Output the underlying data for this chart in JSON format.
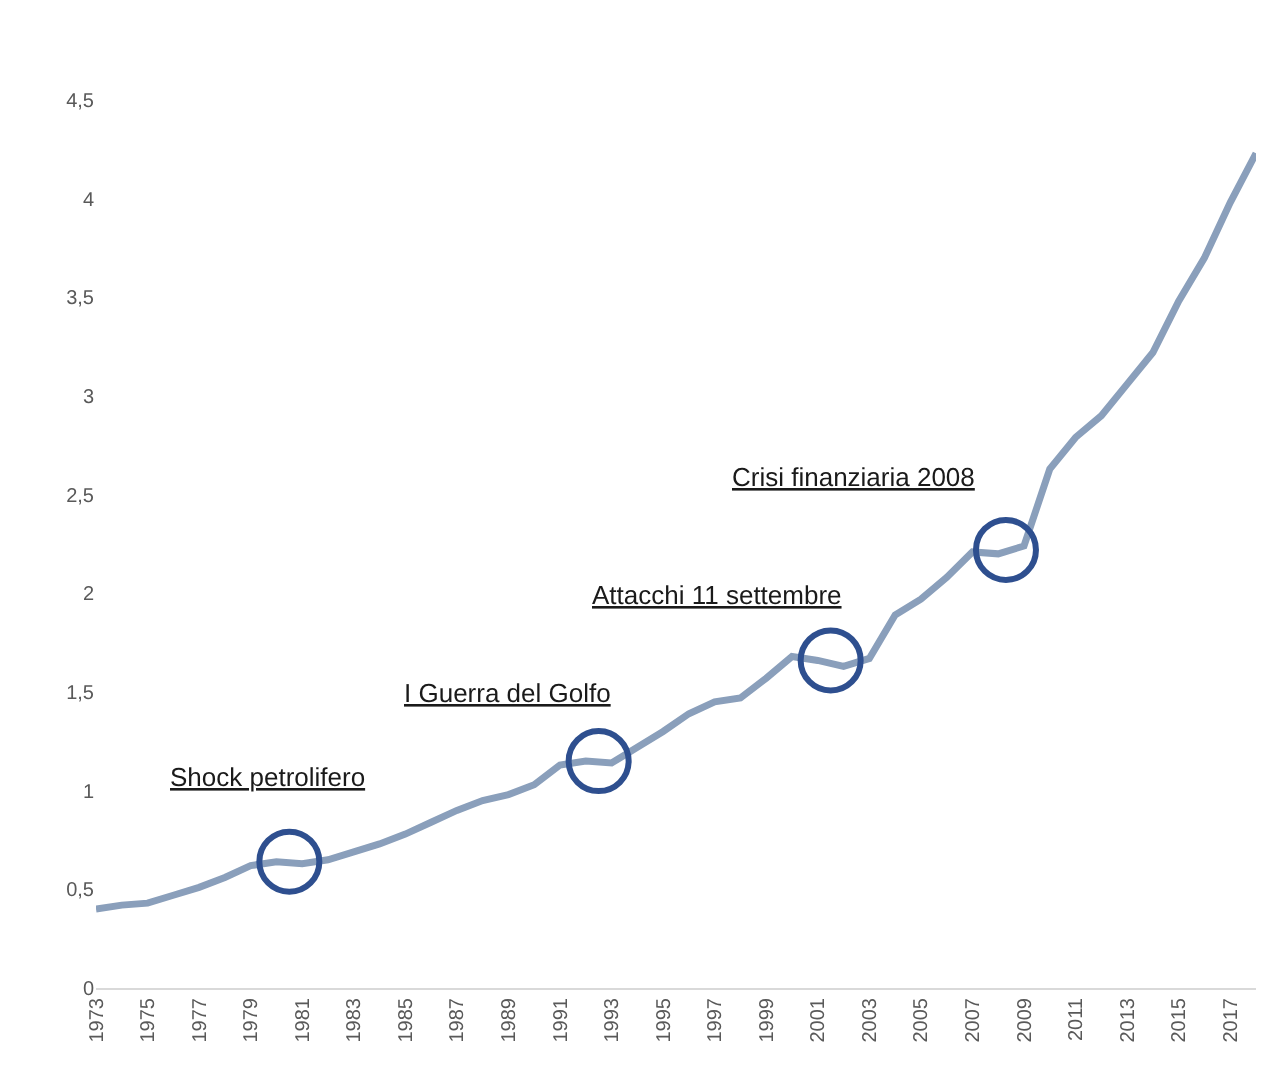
{
  "chart_data": {
    "type": "line",
    "x": [
      1973,
      1974,
      1975,
      1976,
      1977,
      1978,
      1979,
      1980,
      1981,
      1982,
      1983,
      1984,
      1985,
      1986,
      1987,
      1988,
      1989,
      1990,
      1991,
      1992,
      1993,
      1994,
      1995,
      1996,
      1997,
      1998,
      1999,
      2000,
      2001,
      2002,
      2003,
      2004,
      2005,
      2006,
      2007,
      2008,
      2009,
      2010,
      2011,
      2012,
      2013,
      2014,
      2015,
      2016,
      2017,
      2018
    ],
    "series": [
      {
        "color": "#8a9fbb",
        "values": [
          0.4,
          0.42,
          0.43,
          0.47,
          0.51,
          0.56,
          0.62,
          0.64,
          0.63,
          0.65,
          0.69,
          0.73,
          0.78,
          0.84,
          0.9,
          0.95,
          0.98,
          1.03,
          1.13,
          1.15,
          1.14,
          1.22,
          1.3,
          1.39,
          1.45,
          1.47,
          1.57,
          1.68,
          1.66,
          1.63,
          1.67,
          1.89,
          1.97,
          2.08,
          2.21,
          2.2,
          2.24,
          2.63,
          2.79,
          2.9,
          3.06,
          3.22,
          3.48,
          3.7,
          3.98,
          4.23
        ]
      }
    ],
    "xlim": [
      1973,
      2018
    ],
    "xticks": [
      1973,
      1975,
      1977,
      1979,
      1981,
      1983,
      1985,
      1987,
      1989,
      1991,
      1993,
      1995,
      1997,
      1999,
      2001,
      2003,
      2005,
      2007,
      2009,
      2011,
      2013,
      2015,
      2017
    ],
    "ylim": [
      0,
      4.5
    ],
    "yticks": [
      {
        "value": 0,
        "label": "0"
      },
      {
        "value": 0.5,
        "label": "0,5"
      },
      {
        "value": 1,
        "label": "1"
      },
      {
        "value": 1.5,
        "label": "1,5"
      },
      {
        "value": 2,
        "label": "2"
      },
      {
        "value": 2.5,
        "label": "2,5"
      },
      {
        "value": 3,
        "label": "3"
      },
      {
        "value": 3.5,
        "label": "3,5"
      },
      {
        "value": 4,
        "label": "4"
      },
      {
        "value": 4.5,
        "label": "4,5"
      }
    ],
    "annotations": [
      {
        "text": "Shock petrolifero",
        "x": 1980.5,
        "y": 0.64
      },
      {
        "text": "I Guerra del Golfo",
        "x": 1992.5,
        "y": 1.15
      },
      {
        "text": "Attacchi 11 settembre",
        "x": 2001.5,
        "y": 1.66
      },
      {
        "text": "Crisi finanziaria 2008",
        "x": 2008.3,
        "y": 2.22
      }
    ],
    "legend": false,
    "marker": "none",
    "line_style": "solid"
  }
}
